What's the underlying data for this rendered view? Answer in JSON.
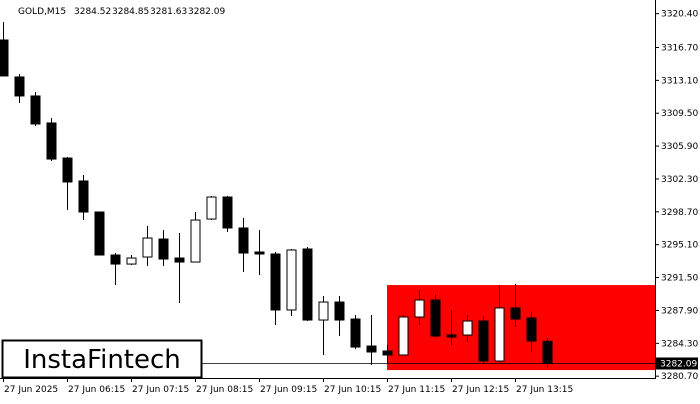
{
  "chart_data": {
    "type": "candlestick",
    "title": "GOLD,M15",
    "categories": [
      "27 Jun 2025",
      null,
      null,
      null,
      "27 Jun 06:15",
      null,
      null,
      null,
      "27 Jun 07:15",
      null,
      null,
      null,
      "27 Jun 08:15",
      null,
      null,
      null,
      "27 Jun 09:15",
      null,
      null,
      null,
      "27 Jun 10:15",
      null,
      null,
      null,
      "27 Jun 11:15",
      null,
      null,
      null,
      "27 Jun 12:15",
      null,
      null,
      null,
      "27 Jun 13:15",
      null,
      null
    ],
    "open": [
      3317.52,
      3313.47,
      3311.39,
      3308.43,
      3304.59,
      3302.08,
      3298.68,
      3293.97,
      3292.98,
      3293.75,
      3295.72,
      3293.64,
      3293.2,
      3297.91,
      3300.32,
      3296.93,
      3294.3,
      3294.08,
      3287.95,
      3294.63,
      3286.85,
      3288.82,
      3286.96,
      3284.0,
      3283.46,
      3283.02,
      3287.18,
      3289.04,
      3285.21,
      3285.21,
      3286.74,
      3282.36,
      3288.17,
      3287.07,
      3284.52
    ],
    "high": [
      3319.49,
      3313.79,
      3311.82,
      3308.98,
      3304.7,
      3302.73,
      3298.68,
      3294.19,
      3293.97,
      3297.15,
      3296.71,
      3296.38,
      3298.68,
      3300.43,
      3300.43,
      3298.02,
      3296.71,
      3294.3,
      3294.63,
      3294.85,
      3289.48,
      3289.48,
      3287.4,
      3287.4,
      3284.11,
      3287.4,
      3290.14,
      3289.59,
      3287.95,
      3287.4,
      3287.29,
      3290.68,
      3290.79,
      3287.73,
      3284.85
    ],
    "low": [
      3313.58,
      3310.62,
      3308.1,
      3304.27,
      3298.9,
      3297.8,
      3293.97,
      3290.68,
      3292.87,
      3292.77,
      3292.77,
      3288.71,
      3293.2,
      3297.8,
      3296.49,
      3292.11,
      3291.78,
      3286.3,
      3287.29,
      3286.74,
      3283.02,
      3285.1,
      3283.67,
      3281.92,
      3282.14,
      3283.02,
      3286.3,
      3284.99,
      3284.11,
      3284.44,
      3282.14,
      3282.25,
      3286.09,
      3283.35,
      3281.63
    ],
    "close": [
      3313.58,
      3311.39,
      3308.32,
      3304.48,
      3301.97,
      3298.68,
      3293.97,
      3292.98,
      3293.64,
      3295.83,
      3293.53,
      3293.2,
      3297.8,
      3300.32,
      3296.93,
      3294.19,
      3294.08,
      3287.95,
      3294.52,
      3286.85,
      3288.82,
      3286.85,
      3283.89,
      3283.35,
      3283.02,
      3287.18,
      3289.04,
      3285.1,
      3284.99,
      3286.74,
      3282.36,
      3288.17,
      3286.96,
      3284.55,
      3282.09
    ],
    "up_color": "#ffffff",
    "down_color": "#000000",
    "ylim": [
      3280.5,
      3321.9
    ],
    "yticks": [
      {
        "value": 3320.4,
        "label": "3320.40"
      },
      {
        "value": 3316.7,
        "label": "3316.70"
      },
      {
        "value": 3313.1,
        "label": "3313.10"
      },
      {
        "value": 3309.5,
        "label": "3309.50"
      },
      {
        "value": 3305.9,
        "label": "3305.90"
      },
      {
        "value": 3302.3,
        "label": "3302.30"
      },
      {
        "value": 3298.7,
        "label": "3298.70"
      },
      {
        "value": 3295.1,
        "label": "3295.10"
      },
      {
        "value": 3291.5,
        "label": "3291.50"
      },
      {
        "value": 3287.9,
        "label": "3287.90"
      },
      {
        "value": 3284.3,
        "label": "3284.30"
      },
      {
        "value": 3280.7,
        "label": "3280.70"
      }
    ],
    "zone": {
      "from": "27 Jun 11:15",
      "high": 3290.68,
      "low": 3281.37,
      "color": "#ff0000"
    }
  },
  "logo": "InstaFintech"
}
